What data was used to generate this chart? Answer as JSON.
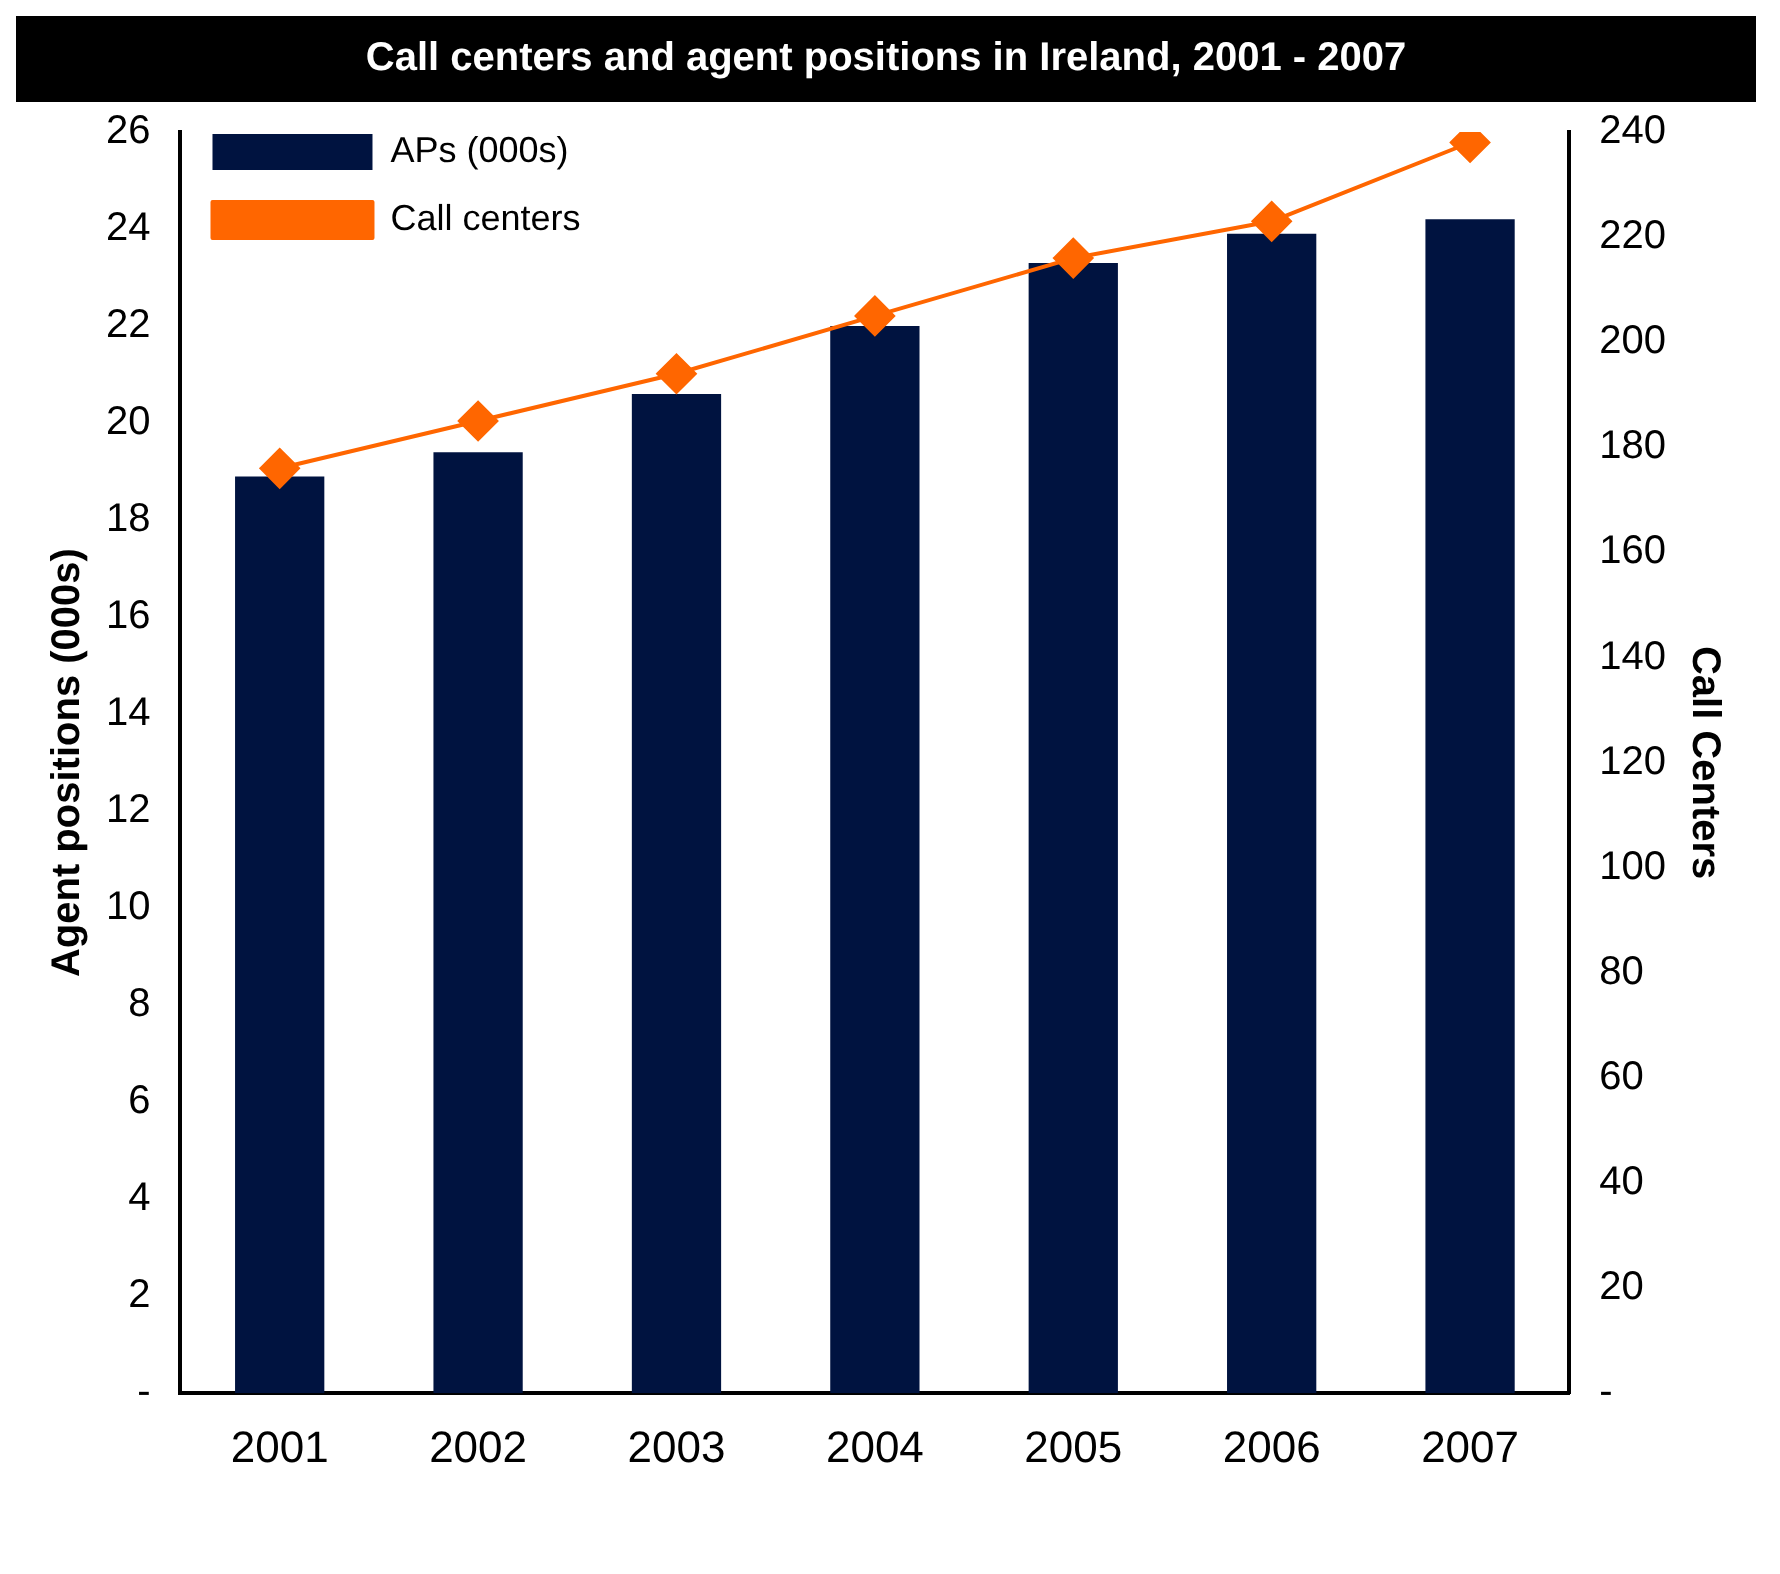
{
  "chart_data": {
    "type": "bar",
    "title": "Call centers and agent positions in Ireland, 2001 - 2007",
    "ylabel": "Agent positions (000s)",
    "y2label": "Call Centers",
    "categories": [
      "2001",
      "2002",
      "2003",
      "2004",
      "2005",
      "2006",
      "2007"
    ],
    "series": [
      {
        "name": "APs (000s)",
        "color": "#001340",
        "values": [
          18.9,
          19.4,
          20.6,
          22.0,
          23.3,
          23.9,
          24.2
        ]
      },
      {
        "name": "Call centers",
        "type": "line",
        "axis": "y2",
        "color": "#ff6600",
        "values": [
          176,
          185,
          194,
          205,
          216,
          223,
          238
        ]
      }
    ],
    "ylim": [
      0,
      26
    ],
    "yticks": [
      {
        "value": 0,
        "label": "-"
      },
      2,
      4,
      6,
      8,
      10,
      12,
      14,
      16,
      18,
      20,
      22,
      24,
      26
    ],
    "y2lim": [
      0,
      240
    ],
    "y2ticks": [
      {
        "value": 0,
        "label": "-"
      },
      20,
      40,
      60,
      80,
      100,
      120,
      140,
      160,
      180,
      200,
      220,
      240
    ],
    "grid": false,
    "legend": "top left",
    "marker": "diamond",
    "line_style": "solid"
  }
}
